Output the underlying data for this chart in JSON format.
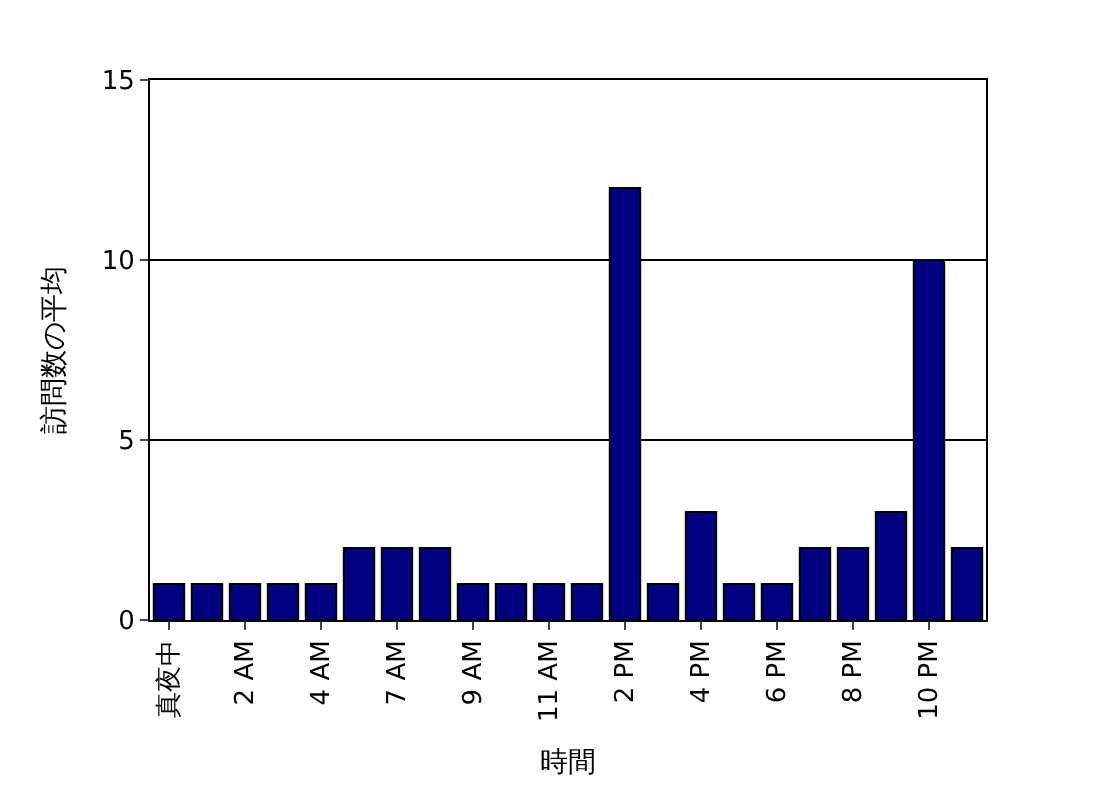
{
  "chart_data": {
    "type": "bar",
    "xlabel": "時間",
    "ylabel": "訪問数の平均",
    "categories": [
      "真夜中",
      null,
      "2 AM",
      null,
      "4 AM",
      null,
      "7 AM",
      null,
      "9 AM",
      null,
      "11 AM",
      null,
      "2 PM",
      null,
      "4 PM",
      null,
      "6 PM",
      null,
      "8 PM",
      null,
      "10 PM",
      null
    ],
    "values": [
      1,
      1,
      1,
      1,
      1,
      2,
      2,
      2,
      1,
      1,
      1,
      1,
      12,
      1,
      3,
      1,
      1,
      2,
      2,
      3,
      10,
      2
    ],
    "color": "#000080",
    "ylim": [
      0,
      15
    ],
    "yticks": [
      0,
      5,
      10,
      15
    ],
    "grid": "y"
  }
}
